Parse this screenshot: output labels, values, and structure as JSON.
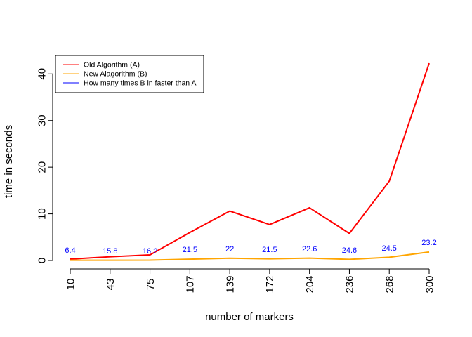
{
  "chart_data": {
    "type": "line",
    "title": "",
    "xlabel": "number of markers",
    "ylabel": "time in seconds",
    "categories": [
      "10",
      "43",
      "75",
      "107",
      "139",
      "172",
      "204",
      "236",
      "268",
      "300"
    ],
    "ylim": [
      0,
      42
    ],
    "yticks": [
      "0",
      "10",
      "20",
      "30",
      "40"
    ],
    "grid": false,
    "legend_position": "top-left",
    "series": [
      {
        "name": "Old Algorithm (A)",
        "color": "#ff0000",
        "values": [
          0.3,
          0.8,
          1.2,
          6.0,
          10.6,
          7.7,
          11.3,
          5.8,
          17.0,
          42.3
        ]
      },
      {
        "name": "New Alagorithm (B)",
        "color": "#ffa500",
        "values": [
          0.05,
          0.05,
          0.07,
          0.28,
          0.48,
          0.36,
          0.5,
          0.24,
          0.7,
          1.82
        ]
      },
      {
        "name": "How many times B in faster than A",
        "color": "#0000ff",
        "values": [
          6.4,
          15.8,
          16.2,
          21.5,
          22,
          21.5,
          22.6,
          24.6,
          24.5,
          23.2
        ],
        "labels": [
          "6.4",
          "15.8",
          "16.2",
          "21.5",
          "22",
          "21.5",
          "22.6",
          "24.6",
          "24.5",
          "23.2"
        ],
        "display": "text-labels-only"
      }
    ]
  }
}
